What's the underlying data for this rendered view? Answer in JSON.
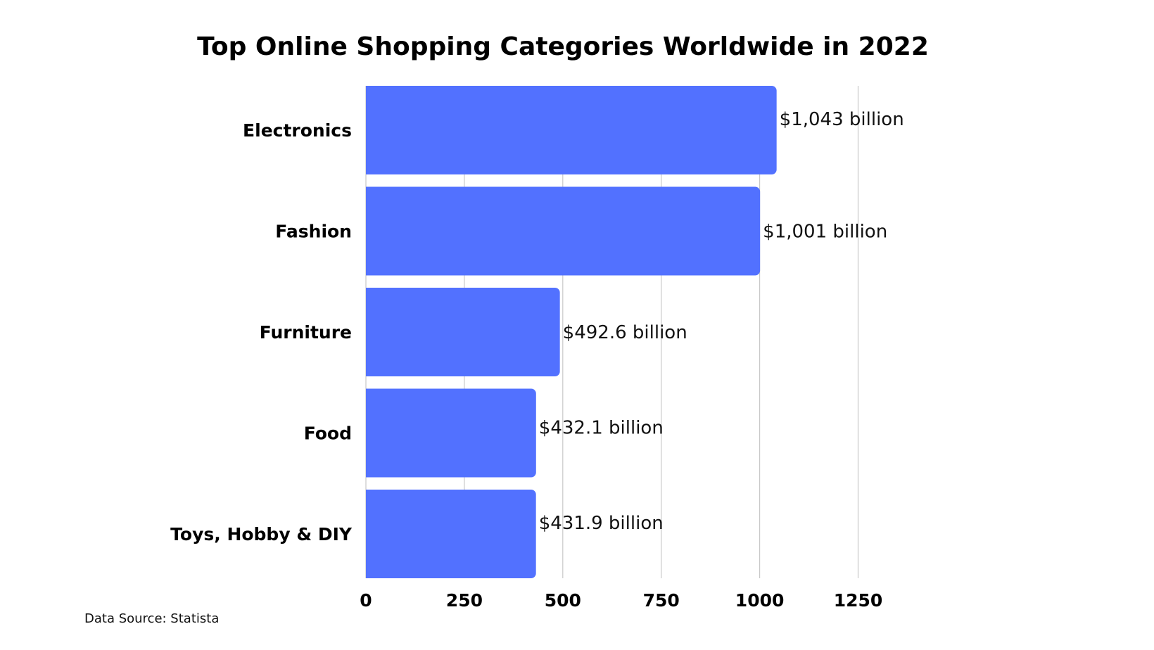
{
  "chart_data": {
    "type": "bar",
    "orientation": "horizontal",
    "title": "Top Online Shopping Categories Worldwide in 2022",
    "categories": [
      "Electronics",
      "Fashion",
      "Furniture",
      "Food",
      "Toys, Hobby & DIY"
    ],
    "values": [
      1043,
      1001,
      492.6,
      432.1,
      431.9
    ],
    "data_labels": [
      "$1,043 billion",
      "$1,001 billion",
      "$492.6 billion",
      "$432.1 billion",
      "$431.9 billion"
    ],
    "x_ticks": [
      "0",
      "250",
      "500",
      "750",
      "1000",
      "1250"
    ],
    "xlim": [
      0,
      1250
    ],
    "xlabel": "",
    "ylabel": "",
    "grid": "vertical",
    "bar_color": "#5271FF",
    "grid_color": "#C8C8C8",
    "legend": "none"
  },
  "footer": {
    "source": "Data Source: Statista"
  }
}
